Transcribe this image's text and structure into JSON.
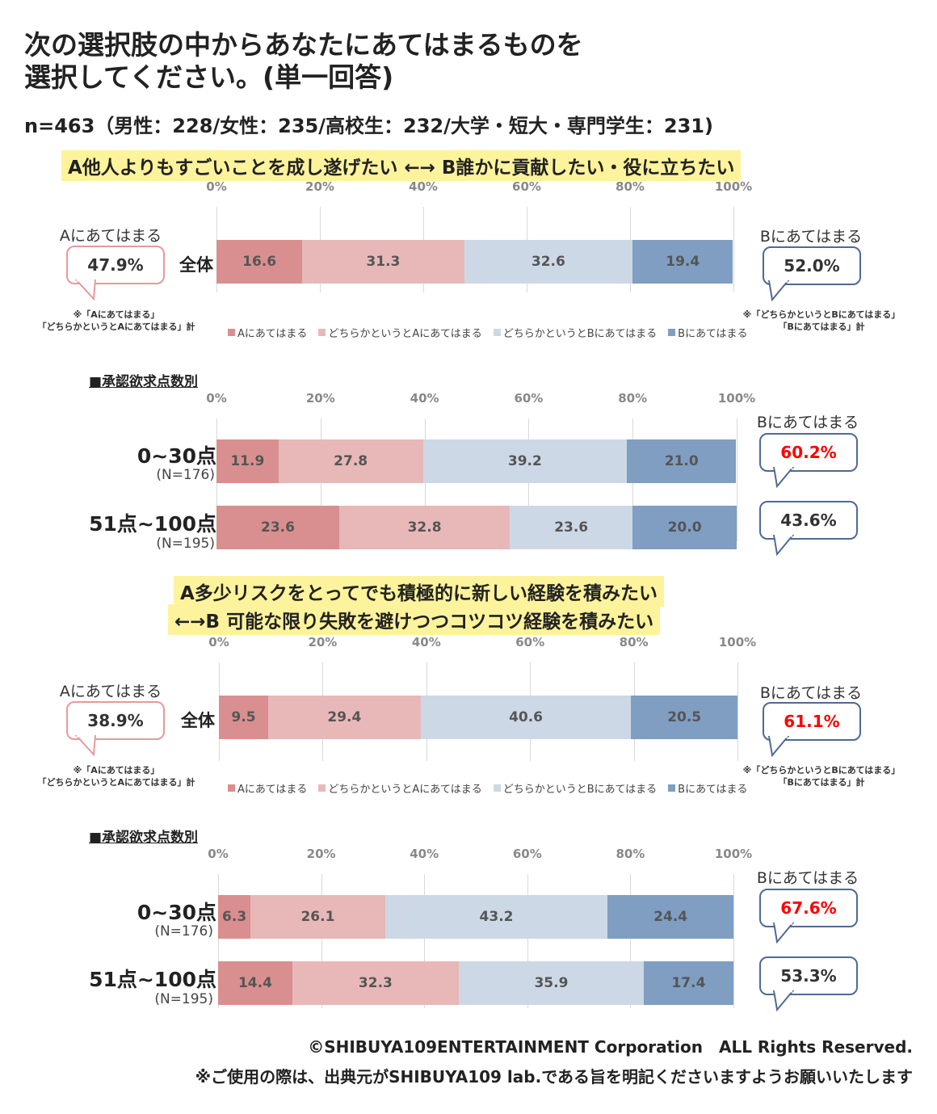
{
  "title_line1": "次の選択肢の中からあなたにあてはまるものを",
  "title_line2": "選択してください。(単一回答)",
  "subtitle": "n=463（男性：228/女性：235/高校生：232/大学・短大・専門学生：231)",
  "colors": {
    "a": "#d98f8f",
    "ma": "#e8b8b8",
    "mb": "#cdd8e6",
    "b": "#7f9ec2",
    "highlight": "#ff0000"
  },
  "ticks": [
    "0%",
    "20%",
    "40%",
    "60%",
    "80%",
    "100%"
  ],
  "legend": [
    "Aにあてはまる",
    "どちらかというとAにあてはまる",
    "どちらかというとBにあてはまる",
    "Bにあてはまる"
  ],
  "callout_a_label": "Aにあてはまる",
  "callout_b_label": "Bにあてはまる",
  "note_a_line1": "※「Aにあてはまる」",
  "note_a_line2": "「どちらかというとAにあてはまる」計",
  "note_b_line1": "※「どちらかというとBにあてはまる」",
  "note_b_line2": "「Bにあてはまる」計",
  "section_header": "■承認欲求点数別",
  "q1": {
    "banner": "A他人よりもすごいことを成し遂げたい ←→ B誰かに貢献したい・役に立ちたい",
    "overall_label": "全体",
    "a_total": "47.9%",
    "b_total": "52.0%"
  },
  "q1_groups": {
    "g1_label": "0~30点",
    "g1_n": "(N=176)",
    "g1_b_total": "60.2%",
    "g2_label": "51点~100点",
    "g2_n": "(N=195)",
    "g2_b_total": "43.6%"
  },
  "q2": {
    "banner_line1": "A多少リスクをとってでも積極的に新しい経験を積みたい",
    "banner_line2": "←→B 可能な限り失敗を避けつつコツコツ経験を積みたい",
    "overall_label": "全体",
    "a_total": "38.9%",
    "b_total": "61.1%"
  },
  "q2_groups": {
    "g1_label": "0~30点",
    "g1_n": "(N=176)",
    "g1_b_total": "67.6%",
    "g2_label": "51点~100点",
    "g2_n": "(N=195)",
    "g2_b_total": "53.3%"
  },
  "footer_line1": "©SHIBUYA109ENTERTAINMENT Corporation　ALL Rights Reserved.",
  "footer_line2": "※ご使用の際は、出典元がSHIBUYA109 lab.である旨を明記くださいますようお願いいたします",
  "chart_data": [
    {
      "type": "bar",
      "stacked": true,
      "orientation": "horizontal",
      "title": "A他人よりもすごいことを成し遂げたい ←→ B誰かに貢献したい・役に立ちたい",
      "categories": [
        "全体"
      ],
      "xlim": [
        0,
        100
      ],
      "series": [
        {
          "name": "Aにあてはまる",
          "values": [
            16.6
          ]
        },
        {
          "name": "どちらかというとAにあてはまる",
          "values": [
            31.3
          ]
        },
        {
          "name": "どちらかというとBにあてはまる",
          "values": [
            32.6
          ]
        },
        {
          "name": "Bにあてはまる",
          "values": [
            19.4
          ]
        }
      ]
    },
    {
      "type": "bar",
      "stacked": true,
      "orientation": "horizontal",
      "title": "■承認欲求点数別",
      "categories": [
        "0~30点",
        "51点~100点"
      ],
      "xlim": [
        0,
        100
      ],
      "series": [
        {
          "name": "Aにあてはまる",
          "values": [
            11.9,
            23.6
          ]
        },
        {
          "name": "どちらかというとAにあてはまる",
          "values": [
            27.8,
            32.8
          ]
        },
        {
          "name": "どちらかというとBにあてはまる",
          "values": [
            39.2,
            23.6
          ]
        },
        {
          "name": "Bにあてはまる",
          "values": [
            21.0,
            20.0
          ]
        }
      ]
    },
    {
      "type": "bar",
      "stacked": true,
      "orientation": "horizontal",
      "title": "A多少リスクをとってでも積極的に新しい経験を積みたい ←→B 可能な限り失敗を避けつつコツコツ経験を積みたい",
      "categories": [
        "全体"
      ],
      "xlim": [
        0,
        100
      ],
      "series": [
        {
          "name": "Aにあてはまる",
          "values": [
            9.5
          ]
        },
        {
          "name": "どちらかというとAにあてはまる",
          "values": [
            29.4
          ]
        },
        {
          "name": "どちらかというとBにあてはまる",
          "values": [
            40.6
          ]
        },
        {
          "name": "Bにあてはまる",
          "values": [
            20.5
          ]
        }
      ]
    },
    {
      "type": "bar",
      "stacked": true,
      "orientation": "horizontal",
      "title": "■承認欲求点数別",
      "categories": [
        "0~30点",
        "51点~100点"
      ],
      "xlim": [
        0,
        100
      ],
      "series": [
        {
          "name": "Aにあてはまる",
          "values": [
            6.3,
            14.4
          ]
        },
        {
          "name": "どちらかというとAにあてはまる",
          "values": [
            26.1,
            32.3
          ]
        },
        {
          "name": "どちらかというとBにあてはまる",
          "values": [
            43.2,
            35.9
          ]
        },
        {
          "name": "Bにあてはまる",
          "values": [
            24.4,
            17.4
          ]
        }
      ]
    }
  ]
}
